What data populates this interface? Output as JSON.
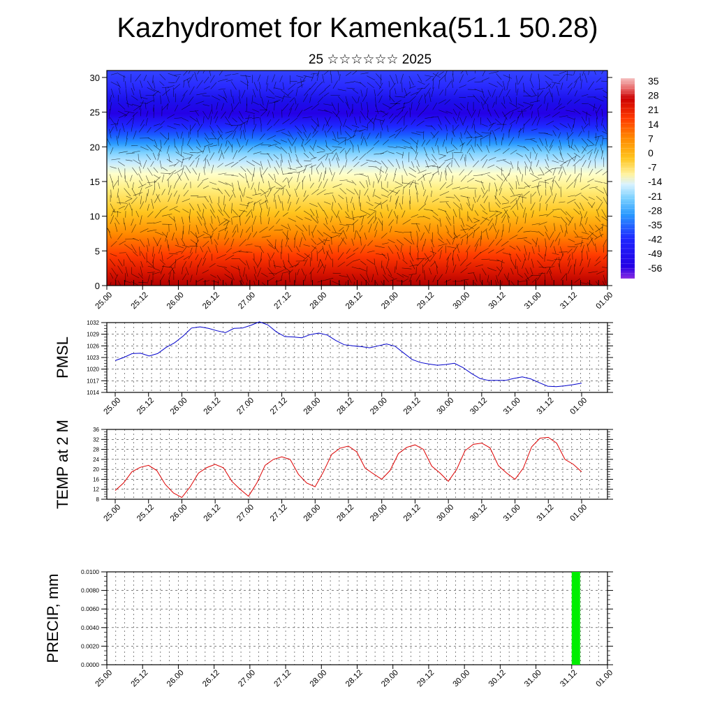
{
  "header": {
    "title": "Kazhydromet for Kamenka(51.1 50.28)",
    "subtitle": "25 ☆☆☆☆☆☆ 2025"
  },
  "colors": {
    "pmsl_line": "#0000cc",
    "temp_line": "#dd0000",
    "precip_bar": "#00ee00"
  },
  "chart_data": [
    {
      "type": "heatmap",
      "name": "vertical-cross-section",
      "x_labels": [
        "25.00",
        "25.12",
        "26.00",
        "26.12",
        "27.00",
        "27.12",
        "28.00",
        "28.12",
        "29.00",
        "29.12",
        "30.00",
        "30.12",
        "31.00",
        "31.12",
        "01.00"
      ],
      "y_ticks": [
        0,
        5,
        10,
        15,
        20,
        25,
        30
      ],
      "ylim": [
        0,
        31
      ],
      "colorbar_labels": [
        "35",
        "28",
        "21",
        "14",
        "7",
        "0",
        "-7",
        "-14",
        "-21",
        "-28",
        "-35",
        "-42",
        "-49",
        "-56"
      ],
      "colorbar_range": [
        -60,
        40
      ]
    },
    {
      "type": "line",
      "name": "pmsl",
      "ylabel": "PMSL",
      "x_labels": [
        "25.00",
        "25.12",
        "26.00",
        "26.12",
        "27.00",
        "27.12",
        "28.00",
        "28.12",
        "29.00",
        "29.12",
        "30.00",
        "30.12",
        "31.00",
        "31.12",
        "01.00"
      ],
      "y_ticks": [
        1014,
        1017,
        1020,
        1023,
        1026,
        1029,
        1032
      ],
      "ylim": [
        1014,
        1032
      ],
      "values": [
        1022.2,
        1023,
        1024,
        1024.1,
        1023.4,
        1024,
        1025.6,
        1026.8,
        1028.5,
        1030.6,
        1030.9,
        1030.5,
        1029.9,
        1029.4,
        1030.5,
        1030.6,
        1031.3,
        1032.2,
        1031.4,
        1029.6,
        1028.4,
        1028.3,
        1028.1,
        1028.9,
        1029.3,
        1028.8,
        1027.4,
        1026.3,
        1026,
        1025.8,
        1025.5,
        1026,
        1026.5,
        1025.9,
        1024.2,
        1022.5,
        1021.7,
        1021.3,
        1021,
        1021.2,
        1021.5,
        1020.4,
        1018.9,
        1017.6,
        1017.1,
        1017.1,
        1017.1,
        1017.6,
        1018,
        1017.5,
        1016.5,
        1015.6,
        1015.5,
        1015.7,
        1016,
        1016.4
      ],
      "grid": true
    },
    {
      "type": "line",
      "name": "temp",
      "ylabel": "TEMP at 2 M",
      "x_labels": [
        "25.00",
        "25.12",
        "26.00",
        "26.12",
        "27.00",
        "27.12",
        "28.00",
        "28.12",
        "29.00",
        "29.12",
        "30.00",
        "30.12",
        "31.00",
        "31.12",
        "01.00"
      ],
      "y_ticks": [
        8,
        12,
        16,
        20,
        24,
        28,
        32,
        36
      ],
      "ylim": [
        8,
        36
      ],
      "values": [
        11.5,
        14.5,
        19,
        20.8,
        21.6,
        19.5,
        14,
        10.5,
        8.7,
        13,
        18.5,
        20.7,
        22,
        20.6,
        15.2,
        12,
        9.2,
        14.5,
        21.6,
        24,
        25,
        24,
        18,
        14.5,
        13,
        19,
        26,
        28.5,
        29.3,
        27,
        20.5,
        18.2,
        16,
        19.5,
        26.3,
        28.8,
        29.8,
        28,
        21.3,
        18.5,
        15.2,
        20,
        27.5,
        30,
        30.5,
        28.6,
        21.5,
        18.5,
        16,
        20.5,
        29,
        32.5,
        32.8,
        30.5,
        24,
        22,
        19
      ],
      "grid": true
    },
    {
      "type": "bar",
      "name": "precip",
      "ylabel": "PRECIP, mm",
      "x_labels": [
        "25.00",
        "25.12",
        "26.00",
        "26.12",
        "27.00",
        "27.12",
        "28.00",
        "28.12",
        "29.00",
        "29.12",
        "30.00",
        "30.12",
        "31.00",
        "31.12",
        "01.00"
      ],
      "y_ticks": [
        "0.0000",
        "0.0020",
        "0.0040",
        "0.0060",
        "0.0080",
        "0.0100"
      ],
      "ylim": [
        0,
        0.01
      ],
      "bars": [
        {
          "x_label": "31.12",
          "value": 0.01
        }
      ],
      "grid": true
    }
  ]
}
